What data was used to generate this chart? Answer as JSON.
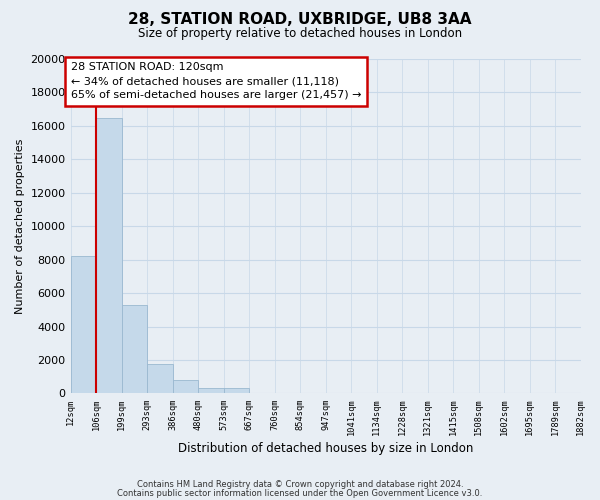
{
  "title": "28, STATION ROAD, UXBRIDGE, UB8 3AA",
  "subtitle": "Size of property relative to detached houses in London",
  "xlabel": "Distribution of detached houses by size in London",
  "ylabel": "Number of detached properties",
  "bar_values": [
    8200,
    16500,
    5300,
    1750,
    800,
    300,
    300,
    0,
    0,
    0,
    0,
    0,
    0,
    0,
    0,
    0,
    0,
    0,
    0,
    0
  ],
  "bar_labels": [
    "12sqm",
    "106sqm",
    "199sqm",
    "293sqm",
    "386sqm",
    "480sqm",
    "573sqm",
    "667sqm",
    "760sqm",
    "854sqm",
    "947sqm",
    "1041sqm",
    "1134sqm",
    "1228sqm",
    "1321sqm",
    "1415sqm",
    "1508sqm",
    "1602sqm",
    "1695sqm",
    "1789sqm",
    "1882sqm"
  ],
  "bar_color": "#c5d9ea",
  "bar_edge_color": "#9ab8d0",
  "ylim": [
    0,
    20000
  ],
  "yticks": [
    0,
    2000,
    4000,
    6000,
    8000,
    10000,
    12000,
    14000,
    16000,
    18000,
    20000
  ],
  "property_line_x": 1,
  "property_line_color": "#cc0000",
  "annotation_title": "28 STATION ROAD: 120sqm",
  "annotation_line1": "← 34% of detached houses are smaller (11,118)",
  "annotation_line2": "65% of semi-detached houses are larger (21,457) →",
  "annotation_box_color": "#ffffff",
  "annotation_box_edge": "#cc0000",
  "grid_color": "#c8d8e8",
  "footnote1": "Contains HM Land Registry data © Crown copyright and database right 2024.",
  "footnote2": "Contains public sector information licensed under the Open Government Licence v3.0.",
  "bg_color": "#e8eef4",
  "plot_bg_color": "#e8eef4"
}
